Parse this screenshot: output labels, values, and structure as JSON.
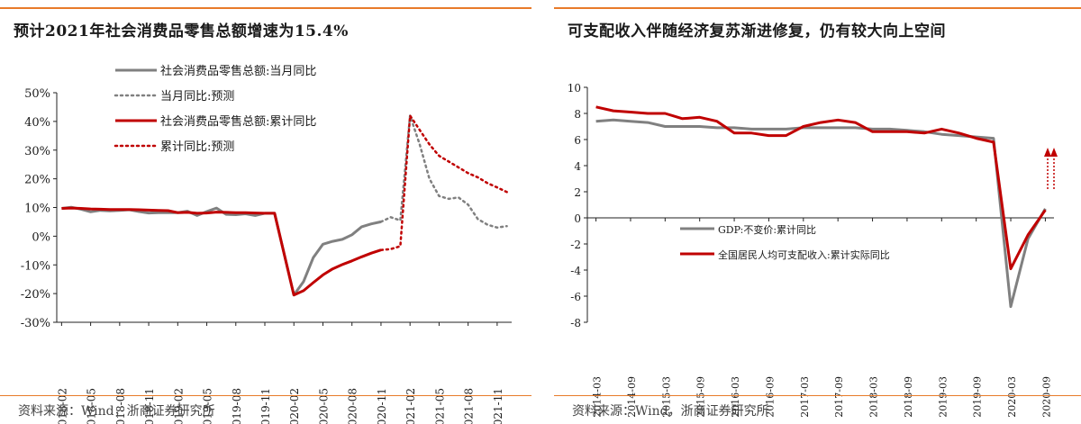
{
  "left": {
    "title": "预计2021年社会消费品零售总额增速为15.4%",
    "source": "资料来源：Wind，浙商证券研究所"
  },
  "right": {
    "title": "可支配收入伴随经济复苏渐进修复，仍有较大向上空间",
    "source": "资料来源：Wind，浙商证券研究所"
  },
  "chart_data": [
    {
      "type": "line",
      "title": "预计2021年社会消费品零售总额增速为15.4%",
      "x": [
        "2018-02",
        "2018-03",
        "2018-04",
        "2018-05",
        "2018-06",
        "2018-07",
        "2018-08",
        "2018-09",
        "2018-10",
        "2018-11",
        "2018-12",
        "2019-01",
        "2019-02",
        "2019-03",
        "2019-04",
        "2019-05",
        "2019-06",
        "2019-07",
        "2019-08",
        "2019-09",
        "2019-10",
        "2019-11",
        "2019-12",
        "2020-01",
        "2020-02",
        "2020-03",
        "2020-04",
        "2020-05",
        "2020-06",
        "2020-07",
        "2020-08",
        "2020-09",
        "2020-10",
        "2020-11",
        "2020-12",
        "2021-01",
        "2021-02",
        "2021-03",
        "2021-04",
        "2021-05",
        "2021-06",
        "2021-07",
        "2021-08",
        "2021-09",
        "2021-10",
        "2021-11",
        "2021-12"
      ],
      "x_tick_labels": [
        "2018-02",
        "2018-05",
        "2018-08",
        "2018-11",
        "2019-02",
        "2019-05",
        "2019-08",
        "2019-11",
        "2020-02",
        "2020-05",
        "2020-08",
        "2020-11",
        "2021-02",
        "2021-05",
        "2021-08",
        "2021-11"
      ],
      "y_tick_labels": [
        "-30%",
        "-20%",
        "-10%",
        "0%",
        "10%",
        "20%",
        "30%",
        "40%",
        "50%"
      ],
      "ylim": [
        -30,
        50
      ],
      "legend_position": "top",
      "series": [
        {
          "name": "社会消费品零售总额:当月同比",
          "color": "#808080",
          "style": "solid",
          "values": [
            9.7,
            10.1,
            9.4,
            8.5,
            9.0,
            8.8,
            9.0,
            9.2,
            8.6,
            8.1,
            8.2,
            8.2,
            8.2,
            8.7,
            7.2,
            8.6,
            9.8,
            7.6,
            7.5,
            7.8,
            7.2,
            8.0,
            8.0,
            null,
            -20.5,
            -15.8,
            -7.5,
            -2.8,
            -1.8,
            -1.1,
            0.5,
            3.3,
            4.3,
            5.0,
            null,
            null,
            null,
            null,
            null,
            null,
            null,
            null,
            null,
            null,
            null,
            null,
            null
          ]
        },
        {
          "name": "当月同比:预测",
          "color": "#808080",
          "style": "dotted",
          "values": [
            null,
            null,
            null,
            null,
            null,
            null,
            null,
            null,
            null,
            null,
            null,
            null,
            null,
            null,
            null,
            null,
            null,
            null,
            null,
            null,
            null,
            null,
            null,
            null,
            null,
            null,
            null,
            null,
            null,
            null,
            null,
            null,
            null,
            5.0,
            6.6,
            5.5,
            42.0,
            32.0,
            20.0,
            14.0,
            13.0,
            13.5,
            11.0,
            6.0,
            4.0,
            3.0,
            3.5
          ]
        },
        {
          "name": "社会消费品零售总额:累计同比",
          "color": "#c00000",
          "style": "solid",
          "values": [
            9.7,
            9.8,
            9.7,
            9.5,
            9.4,
            9.3,
            9.3,
            9.3,
            9.2,
            9.1,
            9.0,
            8.9,
            8.2,
            8.3,
            8.0,
            8.1,
            8.4,
            8.3,
            8.2,
            8.2,
            8.1,
            8.0,
            8.0,
            null,
            -20.5,
            -19.0,
            -16.2,
            -13.5,
            -11.4,
            -9.9,
            -8.6,
            -7.2,
            -5.9,
            -4.8,
            null,
            null,
            null,
            null,
            null,
            null,
            null,
            null,
            null,
            null,
            null,
            null,
            null
          ]
        },
        {
          "name": "累计同比:预测",
          "color": "#c00000",
          "style": "dotted",
          "values": [
            null,
            null,
            null,
            null,
            null,
            null,
            null,
            null,
            null,
            null,
            null,
            null,
            null,
            null,
            null,
            null,
            null,
            null,
            null,
            null,
            null,
            null,
            null,
            null,
            null,
            null,
            null,
            null,
            null,
            null,
            null,
            null,
            null,
            -4.8,
            -4.5,
            -3.5,
            42.0,
            37.0,
            32.0,
            28.0,
            26.0,
            24.0,
            22.0,
            20.5,
            18.5,
            17.0,
            15.4
          ]
        }
      ]
    },
    {
      "type": "line",
      "title": "可支配收入伴随经济复苏渐进修复，仍有较大向上空间",
      "x": [
        "2014-03",
        "2014-06",
        "2014-09",
        "2014-12",
        "2015-03",
        "2015-06",
        "2015-09",
        "2015-12",
        "2016-03",
        "2016-06",
        "2016-09",
        "2016-12",
        "2017-03",
        "2017-06",
        "2017-09",
        "2017-12",
        "2018-03",
        "2018-06",
        "2018-09",
        "2018-12",
        "2019-03",
        "2019-06",
        "2019-09",
        "2019-12",
        "2020-03",
        "2020-06",
        "2020-09"
      ],
      "x_tick_labels": [
        "2014-03",
        "2014-09",
        "2015-03",
        "2015-09",
        "2016-03",
        "2016-09",
        "2017-03",
        "2017-09",
        "2018-03",
        "2018-09",
        "2019-03",
        "2019-09",
        "2020-03",
        "2020-09"
      ],
      "y_tick_labels": [
        "-8",
        "-6",
        "-4",
        "-2",
        "0",
        "2",
        "4",
        "6",
        "8",
        "10"
      ],
      "ylim": [
        -8,
        10
      ],
      "legend_position": "center-left",
      "series": [
        {
          "name": "GDP:不变价:累计同比",
          "color": "#808080",
          "style": "solid",
          "values": [
            7.4,
            7.5,
            7.4,
            7.3,
            7.0,
            7.0,
            7.0,
            6.9,
            6.9,
            6.8,
            6.8,
            6.8,
            6.9,
            6.9,
            6.9,
            6.9,
            6.8,
            6.8,
            6.7,
            6.6,
            6.4,
            6.3,
            6.2,
            6.1,
            -6.8,
            -1.6,
            0.7
          ]
        },
        {
          "name": "全国居民人均可支配收入:累计实际同比",
          "color": "#c00000",
          "style": "solid",
          "values": [
            8.5,
            8.2,
            8.1,
            8.0,
            8.0,
            7.6,
            7.7,
            7.4,
            6.5,
            6.5,
            6.3,
            6.3,
            7.0,
            7.3,
            7.5,
            7.3,
            6.6,
            6.6,
            6.6,
            6.5,
            6.8,
            6.5,
            6.1,
            5.8,
            -3.9,
            -1.3,
            0.6
          ]
        }
      ]
    }
  ]
}
